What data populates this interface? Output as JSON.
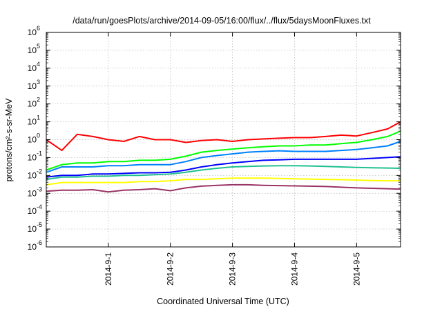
{
  "chart_data": {
    "type": "line",
    "title": "/data/run/goesPlots/archive/2014-09-05/16:00/flux/../flux/5daysMoonFluxes.txt",
    "xlabel": "Coordinated Universal Time (UTC)",
    "ylabel": "protons/cm²-s-sr-MeV",
    "yscale": "log",
    "ylim": [
      1e-06,
      1000000.0
    ],
    "xlim": [
      "2014-08-31 00:00",
      "2014-09-05 17:00"
    ],
    "grid": true,
    "legend": "none",
    "x_ticks": [
      "2014-9-1",
      "2014-9-2",
      "2014-9-3",
      "2014-9-4",
      "2014-9-5"
    ],
    "y_ticks": [
      {
        "base": "10",
        "exp": "6"
      },
      {
        "base": "10",
        "exp": "5"
      },
      {
        "base": "10",
        "exp": "4"
      },
      {
        "base": "10",
        "exp": "3"
      },
      {
        "base": "10",
        "exp": "2"
      },
      {
        "base": "10",
        "exp": "1"
      },
      {
        "base": "10",
        "exp": "0"
      },
      {
        "base": "10",
        "exp": "-1"
      },
      {
        "base": "10",
        "exp": "-2"
      },
      {
        "base": "10",
        "exp": "-3"
      },
      {
        "base": "10",
        "exp": "-4"
      },
      {
        "base": "10",
        "exp": "-5"
      },
      {
        "base": "10",
        "exp": "-6"
      }
    ],
    "x": [
      "2014-08-31 00:00",
      "2014-08-31 06:00",
      "2014-08-31 12:00",
      "2014-08-31 18:00",
      "2014-09-01 00:00",
      "2014-09-01 06:00",
      "2014-09-01 12:00",
      "2014-09-01 18:00",
      "2014-09-02 00:00",
      "2014-09-02 06:00",
      "2014-09-02 12:00",
      "2014-09-02 18:00",
      "2014-09-03 00:00",
      "2014-09-03 06:00",
      "2014-09-03 12:00",
      "2014-09-03 18:00",
      "2014-09-04 00:00",
      "2014-09-04 06:00",
      "2014-09-04 12:00",
      "2014-09-04 18:00",
      "2014-09-05 00:00",
      "2014-09-05 06:00",
      "2014-09-05 12:00",
      "2014-09-05 17:00"
    ],
    "series": [
      {
        "color": "#ff0000",
        "values": [
          1.0,
          0.25,
          2.0,
          1.5,
          1.0,
          0.8,
          1.5,
          1.0,
          1.0,
          0.7,
          0.9,
          1.0,
          0.8,
          1.0,
          1.1,
          1.2,
          1.3,
          1.3,
          1.5,
          1.8,
          1.6,
          2.5,
          4.0,
          10
        ]
      },
      {
        "color": "#00ff00",
        "values": [
          0.02,
          0.04,
          0.05,
          0.05,
          0.06,
          0.06,
          0.07,
          0.07,
          0.08,
          0.12,
          0.2,
          0.25,
          0.3,
          0.35,
          0.4,
          0.45,
          0.45,
          0.5,
          0.5,
          0.6,
          0.7,
          1.0,
          1.5,
          3.0
        ]
      },
      {
        "color": "#0080ff",
        "values": [
          0.015,
          0.03,
          0.03,
          0.03,
          0.035,
          0.035,
          0.04,
          0.04,
          0.04,
          0.06,
          0.1,
          0.13,
          0.16,
          0.2,
          0.22,
          0.24,
          0.22,
          0.22,
          0.22,
          0.25,
          0.28,
          0.35,
          0.45,
          0.8
        ]
      },
      {
        "color": "#0000ff",
        "values": [
          0.008,
          0.01,
          0.01,
          0.012,
          0.012,
          0.013,
          0.014,
          0.014,
          0.015,
          0.02,
          0.03,
          0.04,
          0.05,
          0.06,
          0.07,
          0.075,
          0.08,
          0.08,
          0.08,
          0.08,
          0.08,
          0.09,
          0.1,
          0.11
        ]
      },
      {
        "color": "#20c090",
        "values": [
          0.006,
          0.008,
          0.008,
          0.009,
          0.009,
          0.01,
          0.01,
          0.011,
          0.012,
          0.015,
          0.02,
          0.025,
          0.03,
          0.032,
          0.034,
          0.035,
          0.035,
          0.034,
          0.032,
          0.03,
          0.028,
          0.027,
          0.026,
          0.025
        ]
      },
      {
        "color": "#ffff00",
        "values": [
          0.003,
          0.004,
          0.004,
          0.004,
          0.004,
          0.004,
          0.0045,
          0.0045,
          0.005,
          0.006,
          0.006,
          0.0065,
          0.007,
          0.007,
          0.007,
          0.0068,
          0.0065,
          0.0062,
          0.006,
          0.0058,
          0.0055,
          0.0052,
          0.005,
          0.005
        ]
      },
      {
        "color": "#993366",
        "values": [
          0.0013,
          0.0015,
          0.0015,
          0.0016,
          0.0012,
          0.0015,
          0.0016,
          0.0018,
          0.0014,
          0.002,
          0.0025,
          0.0028,
          0.003,
          0.003,
          0.0028,
          0.0027,
          0.0026,
          0.0025,
          0.0024,
          0.0022,
          0.002,
          0.0019,
          0.0018,
          0.0017
        ]
      }
    ]
  }
}
